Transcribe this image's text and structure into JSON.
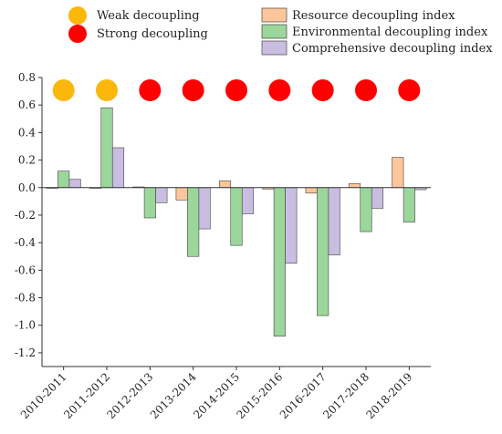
{
  "chart_data": {
    "type": "bar",
    "categories": [
      "2010-2011",
      "2011-2012",
      "2012-2013",
      "2013-2014",
      "2014-2015",
      "2015-2016",
      "2016-2017",
      "2017-2018",
      "2018-2019"
    ],
    "series": [
      {
        "name": "Resource decoupling index",
        "color": "#fcc59b",
        "values": [
          0.0,
          0.0,
          0.005,
          -0.09,
          0.05,
          -0.01,
          -0.04,
          0.03,
          0.22
        ]
      },
      {
        "name": "Environmental decoupling index",
        "color": "#9bd69b",
        "values": [
          0.12,
          0.58,
          -0.22,
          -0.5,
          -0.42,
          -1.08,
          -0.93,
          -0.32,
          -0.25
        ]
      },
      {
        "name": "Comprehensive decoupling index",
        "color": "#c9bde1",
        "values": [
          0.06,
          0.29,
          -0.11,
          -0.3,
          -0.19,
          -0.55,
          -0.49,
          -0.15,
          -0.015
        ]
      }
    ],
    "status": [
      "Weak decoupling",
      "Weak decoupling",
      "Strong decoupling",
      "Strong decoupling",
      "Strong decoupling",
      "Strong decoupling",
      "Strong decoupling",
      "Strong decoupling",
      "Strong decoupling"
    ],
    "status_legend": [
      {
        "label": "Weak decoupling",
        "color": "#fbb80b"
      },
      {
        "label": "Strong decoupling",
        "color": "#ff0000"
      }
    ],
    "y_ticks": [
      "0.8",
      "0.6",
      "0.4",
      "0.2",
      "0.0",
      "-0.2",
      "-0.4",
      "-0.6",
      "-0.8",
      "-1.0",
      "-1.2"
    ],
    "ylim": [
      -1.3,
      0.8
    ],
    "grid": false
  }
}
